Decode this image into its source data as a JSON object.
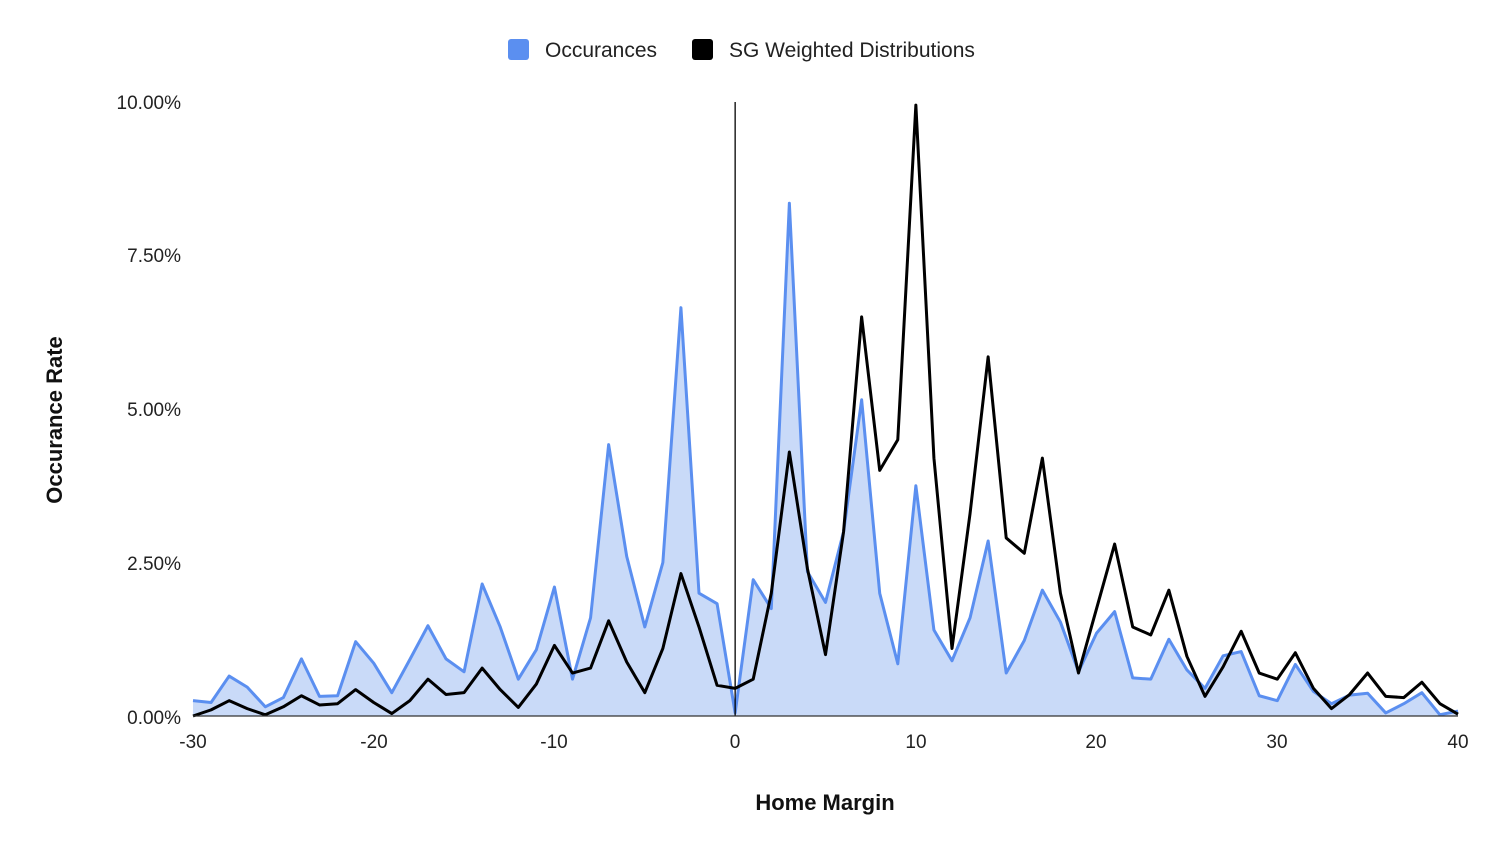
{
  "chart_data": {
    "type": "area",
    "title": "",
    "xlabel": "Home Margin",
    "ylabel": "Occurance Rate",
    "xlim": [
      -30,
      40
    ],
    "ylim": [
      0,
      10
    ],
    "x_ticks": [
      "-30",
      "-20",
      "-10",
      "0",
      "10",
      "20",
      "30",
      "40"
    ],
    "y_ticks": [
      "0.00%",
      "2.50%",
      "5.00%",
      "7.50%",
      "10.00%"
    ],
    "legend_position": "top-center",
    "grid": false,
    "x": [
      -30,
      -29,
      -28,
      -27,
      -26,
      -25,
      -24,
      -23,
      -22,
      -21,
      -20,
      -19,
      -18,
      -17,
      -16,
      -15,
      -14,
      -13,
      -12,
      -11,
      -10,
      -9,
      -8,
      -7,
      -6,
      -5,
      -4,
      -3,
      -2,
      -1,
      0,
      1,
      2,
      3,
      4,
      5,
      6,
      7,
      8,
      9,
      10,
      11,
      12,
      13,
      14,
      15,
      16,
      17,
      18,
      19,
      20,
      21,
      22,
      23,
      24,
      25,
      26,
      27,
      28,
      29,
      30,
      31,
      32,
      33,
      34,
      35,
      36,
      37,
      38,
      39,
      40
    ],
    "series": [
      {
        "name": "Occurances",
        "type": "area",
        "color": "#5b8ff0",
        "fill": "#c9daf8",
        "values": [
          0.25,
          0.22,
          0.65,
          0.47,
          0.15,
          0.3,
          0.93,
          0.32,
          0.33,
          1.21,
          0.86,
          0.38,
          0.92,
          1.47,
          0.93,
          0.72,
          2.15,
          1.45,
          0.6,
          1.08,
          2.1,
          0.6,
          1.6,
          4.42,
          2.6,
          1.45,
          2.5,
          6.65,
          2.0,
          1.83,
          0.05,
          2.22,
          1.75,
          8.35,
          2.35,
          1.85,
          3.0,
          5.15,
          2.0,
          0.85,
          3.75,
          1.4,
          0.9,
          1.6,
          2.85,
          0.7,
          1.23,
          2.05,
          1.53,
          0.72,
          1.35,
          1.7,
          0.62,
          0.6,
          1.25,
          0.75,
          0.45,
          0.98,
          1.05,
          0.33,
          0.25,
          0.84,
          0.4,
          0.2,
          0.34,
          0.37,
          0.05,
          0.2,
          0.38,
          0.02,
          0.08
        ]
      },
      {
        "name": "SG Weighted Distributions",
        "type": "line",
        "color": "#000000",
        "values": [
          0.0,
          0.1,
          0.25,
          0.12,
          0.02,
          0.15,
          0.33,
          0.18,
          0.2,
          0.43,
          0.22,
          0.04,
          0.25,
          0.6,
          0.35,
          0.38,
          0.78,
          0.43,
          0.14,
          0.52,
          1.15,
          0.7,
          0.78,
          1.55,
          0.88,
          0.38,
          1.1,
          2.32,
          1.45,
          0.5,
          0.45,
          0.6,
          2.0,
          4.3,
          2.4,
          1.0,
          3.0,
          6.5,
          4.0,
          4.5,
          9.95,
          4.2,
          1.1,
          3.3,
          5.85,
          2.9,
          2.65,
          4.2,
          2.0,
          0.7,
          1.75,
          2.8,
          1.45,
          1.32,
          2.05,
          0.97,
          0.32,
          0.8,
          1.38,
          0.7,
          0.6,
          1.03,
          0.45,
          0.12,
          0.35,
          0.7,
          0.32,
          0.3,
          0.55,
          0.2,
          0.03
        ]
      }
    ]
  }
}
